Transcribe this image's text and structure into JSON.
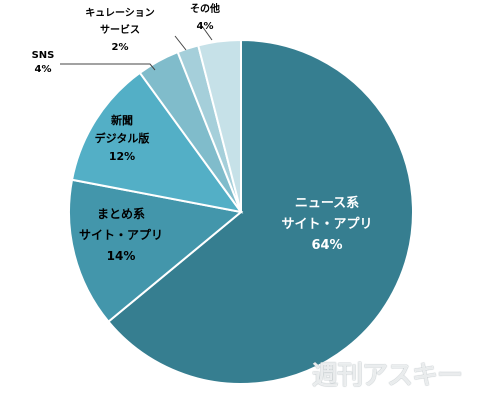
{
  "chart_data": {
    "type": "pie",
    "start": "12 o'clock, clockwise",
    "slices": [
      {
        "lines": [
          "ニュース系",
          "サイト・アプリ"
        ],
        "pct": "64%",
        "value": 64,
        "color": "#367e90",
        "text_color": "#ffffff"
      },
      {
        "lines": [
          "まとめ系",
          "サイト・アプリ"
        ],
        "pct": "14%",
        "value": 14,
        "color": "#4396ab",
        "text_color": "#000000"
      },
      {
        "lines": [
          "新聞",
          "デジタル版"
        ],
        "pct": "12%",
        "value": 12,
        "color": "#53afc6",
        "text_color": "#000000"
      },
      {
        "lines": [
          "SNS"
        ],
        "pct": "4%",
        "value": 4,
        "color": "#80bccb",
        "text_color": "#000000"
      },
      {
        "lines": [
          "キュレーション",
          "サービス"
        ],
        "pct": "2%",
        "value": 2,
        "color": "#a5cfda",
        "text_color": "#000000"
      },
      {
        "lines": [
          "その他"
        ],
        "pct": "4%",
        "value": 4,
        "color": "#c6e1e8",
        "text_color": "#000000"
      }
    ]
  },
  "watermark": "週刊アスキー"
}
